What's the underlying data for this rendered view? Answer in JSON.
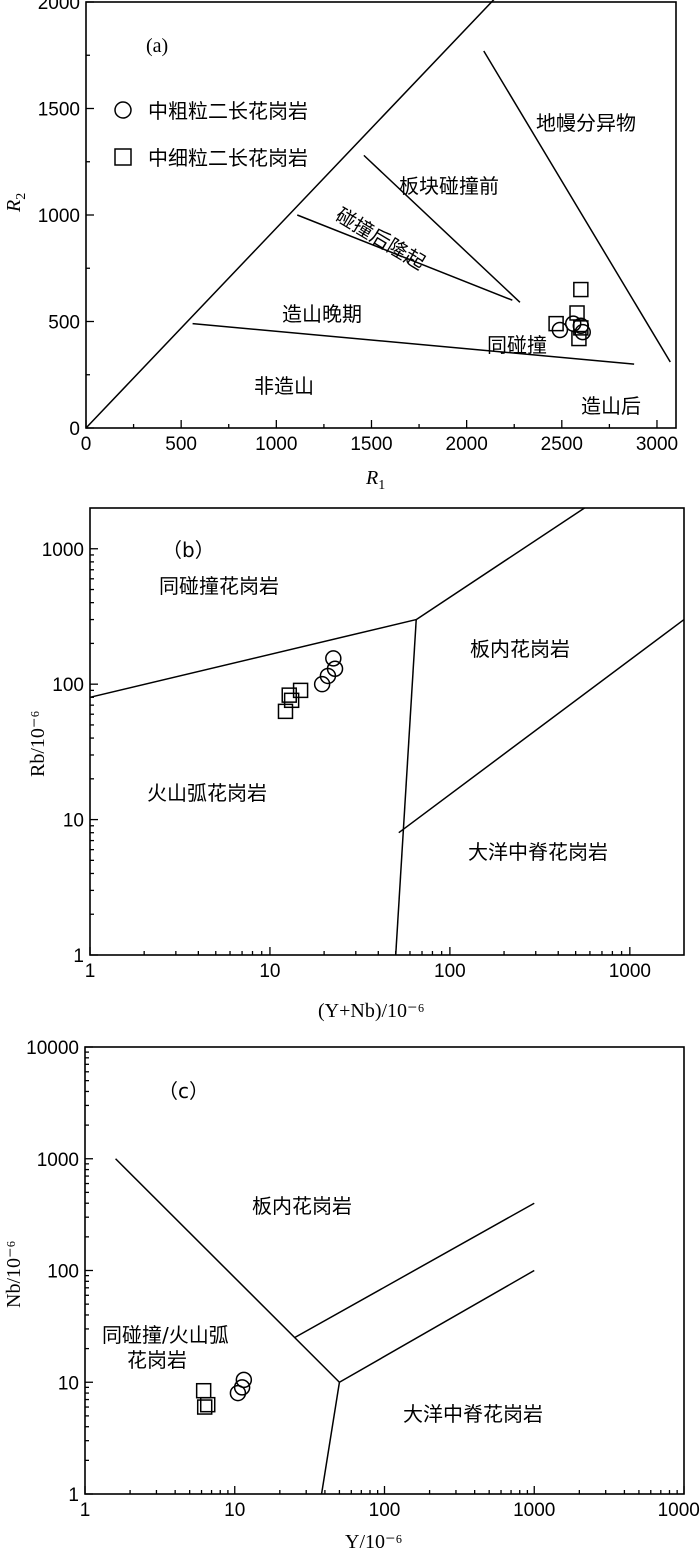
{
  "chart_data": [
    {
      "type": "scatter",
      "panel_label": "(a)",
      "xlabel": "R1",
      "ylabel": "R2",
      "xlim": [
        0,
        3100
      ],
      "ylim": [
        0,
        2000
      ],
      "x_ticks": [
        0,
        500,
        1000,
        1500,
        2000,
        2500,
        3000
      ],
      "y_ticks": [
        0,
        500,
        1000,
        1500,
        2000
      ],
      "legend_position": "top-left",
      "series": [
        {
          "name": "中粗粒二长花岗岩",
          "marker": "circle",
          "x": [
            2490,
            2560,
            2600,
            2610
          ],
          "y": [
            460,
            490,
            480,
            450
          ]
        },
        {
          "name": "中细粒二长花岗岩",
          "marker": "square",
          "x": [
            2470,
            2580,
            2600,
            2590,
            2600
          ],
          "y": [
            490,
            540,
            650,
            420,
            470
          ]
        }
      ],
      "boundary_lines": [
        {
          "x": [
            0,
            2280
          ],
          "y": [
            0,
            2140
          ]
        },
        {
          "x": [
            2090,
            3070
          ],
          "y": [
            1770,
            310
          ]
        },
        {
          "x": [
            1460,
            2280
          ],
          "y": [
            1280,
            590
          ]
        },
        {
          "x": [
            1110,
            2240
          ],
          "y": [
            1000,
            600
          ]
        },
        {
          "x": [
            560,
            2880
          ],
          "y": [
            490,
            300
          ]
        }
      ],
      "fields": [
        "地幔分异物",
        "板块碰撞前",
        "碰撞后隆起",
        "造山晚期",
        "同碰撞",
        "非造山",
        "造山后"
      ]
    },
    {
      "type": "scatter",
      "panel_label": "（b）",
      "xlabel": "(Y+Nb)/10⁻⁶",
      "ylabel": "Rb/10⁻⁶",
      "x_scale": "log",
      "y_scale": "log",
      "xlim": [
        1,
        2000
      ],
      "ylim": [
        1,
        2000
      ],
      "x_ticks": [
        1,
        10,
        100,
        1000
      ],
      "y_ticks": [
        1,
        10,
        100,
        1000
      ],
      "series": [
        {
          "name": "中粗粒二长花岗岩",
          "marker": "circle",
          "x": [
            19.5,
            21,
            23,
            22.5
          ],
          "y": [
            100,
            115,
            130,
            155
          ]
        },
        {
          "name": "中细粒二长花岗岩",
          "marker": "square",
          "x": [
            12.2,
            12.8,
            13.2,
            14.8
          ],
          "y": [
            63,
            83,
            76,
            90
          ]
        }
      ],
      "boundary_lines": [
        {
          "x": [
            1,
            65
          ],
          "y": [
            80,
            300
          ]
        },
        {
          "x": [
            65,
            560
          ],
          "y": [
            300,
            2000
          ]
        },
        {
          "x": [
            65,
            50
          ],
          "y": [
            300,
            1
          ]
        },
        {
          "x": [
            52,
            2000
          ],
          "y": [
            8,
            300
          ]
        }
      ],
      "fields": [
        "同碰撞花岗岩",
        "板内花岗岩",
        "火山弧花岗岩",
        "大洋中脊花岗岩"
      ]
    },
    {
      "type": "scatter",
      "panel_label": "（c）",
      "xlabel": "Y/10⁻⁶",
      "ylabel": "Nb/10⁻⁶",
      "x_scale": "log",
      "y_scale": "log",
      "xlim": [
        1,
        10000
      ],
      "ylim": [
        1,
        10000
      ],
      "x_ticks": [
        1,
        10,
        100,
        1000,
        10000
      ],
      "y_ticks": [
        1,
        10,
        100,
        1000,
        10000
      ],
      "series": [
        {
          "name": "中粗粒二长花岗岩",
          "marker": "circle",
          "x": [
            10.5,
            11.2,
            11.5
          ],
          "y": [
            8.0,
            9.0,
            10.5
          ]
        },
        {
          "name": "中细粒二长花岗岩",
          "marker": "square",
          "x": [
            6.2,
            6.3,
            6.6
          ],
          "y": [
            8.4,
            6.0,
            6.3
          ]
        }
      ],
      "boundary_lines": [
        {
          "x": [
            1.6,
            50
          ],
          "y": [
            1000,
            10
          ]
        },
        {
          "x": [
            50,
            38
          ],
          "y": [
            10,
            1
          ]
        },
        {
          "x": [
            50,
            1000
          ],
          "y": [
            10,
            100
          ]
        },
        {
          "x": [
            25,
            1000
          ],
          "y": [
            25,
            400
          ]
        }
      ],
      "fields": [
        "板内花岗岩",
        "同碰撞/火山弧",
        "花岗岩",
        "大洋中脊花岗岩"
      ]
    }
  ]
}
